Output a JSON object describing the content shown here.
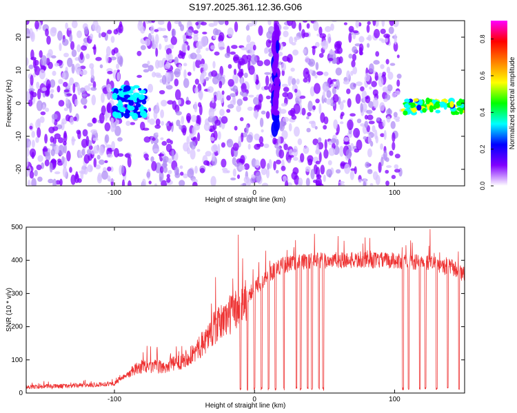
{
  "title": "S197.2025.361.12.36.G06",
  "chart_data": [
    {
      "type": "heatmap",
      "xlabel": "Height of straight line (km)",
      "ylabel": "Frequency (Hz)",
      "xlim": [
        -163,
        150
      ],
      "ylim": [
        -25,
        25
      ],
      "xticks": [
        -100,
        0,
        100
      ],
      "yticks": [
        -20,
        -10,
        0,
        10,
        20
      ],
      "colorbar": {
        "label": "Normalized spectral amplitude",
        "range": [
          0,
          0.9
        ],
        "ticks": [
          0.0,
          0.2,
          0.4,
          0.6,
          0.8
        ],
        "colormap": [
          "#ffffff",
          "#8000ff",
          "#0000ff",
          "#00ffff",
          "#00ff00",
          "#ffff00",
          "#ff8000",
          "#ff0000",
          "#ff00ff"
        ]
      },
      "features": [
        {
          "x_range": [
            -163,
            105
          ],
          "y_range": [
            -25,
            25
          ],
          "amplitude": 0.08
        },
        {
          "x_range": [
            -100,
            -78
          ],
          "y_range": [
            -4,
            5
          ],
          "amplitude": 0.3
        },
        {
          "x_range": [
            13,
            18
          ],
          "y_range": [
            -8,
            22
          ],
          "amplitude": 0.15
        },
        {
          "x_range": [
            106,
            150
          ],
          "y_range": [
            -3,
            1
          ],
          "amplitude": 0.45
        }
      ]
    },
    {
      "type": "line",
      "xlabel": "Height of straight line (km)",
      "ylabel": "SNR (10 * v/v)",
      "xlim": [
        -163,
        150
      ],
      "ylim": [
        0,
        500
      ],
      "xticks": [
        -100,
        0,
        100
      ],
      "yticks": [
        0,
        100,
        200,
        300,
        400,
        500
      ],
      "color": "#ee3333",
      "x": [
        -163,
        -140,
        -120,
        -100,
        -95,
        -90,
        -85,
        -80,
        -75,
        -70,
        -65,
        -60,
        -55,
        -50,
        -45,
        -40,
        -35,
        -30,
        -25,
        -20,
        -15,
        -10,
        -5,
        0,
        5,
        10,
        15,
        20,
        25,
        30,
        35,
        40,
        45,
        50,
        60,
        70,
        80,
        90,
        100,
        105,
        110,
        115,
        120,
        125,
        130,
        135,
        140,
        145,
        150
      ],
      "y": [
        20,
        22,
        25,
        30,
        45,
        60,
        75,
        85,
        80,
        85,
        80,
        90,
        95,
        110,
        120,
        140,
        170,
        200,
        220,
        240,
        260,
        280,
        300,
        320,
        340,
        360,
        380,
        390,
        395,
        400,
        400,
        405,
        405,
        405,
        405,
        405,
        405,
        405,
        405,
        400,
        400,
        400,
        395,
        400,
        390,
        385,
        385,
        375,
        360
      ],
      "dropouts": [
        -10,
        -5,
        0,
        5,
        10,
        15,
        21,
        30,
        33,
        38,
        41,
        46,
        49,
        106,
        110,
        118,
        122,
        130,
        138,
        146
      ]
    }
  ]
}
